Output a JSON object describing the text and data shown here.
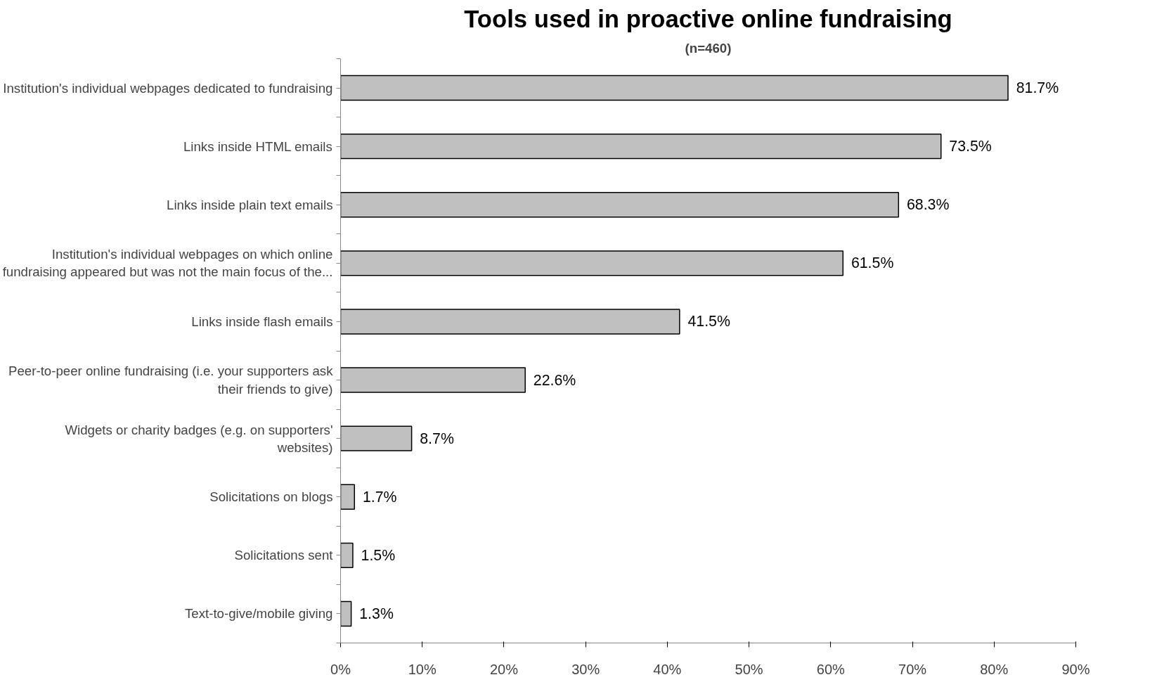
{
  "chart_data": {
    "type": "bar",
    "orientation": "horizontal",
    "title": "Tools used in proactive online fundraising",
    "subtitle": "(n=460)",
    "categories": [
      "Institution's individual webpages dedicated to fundraising",
      "Links inside HTML emails",
      "Links inside plain text emails",
      "Institution's individual webpages on which online\nfundraising appeared but was not the main focus of the...",
      "Links inside flash emails",
      "Peer-to-peer online fundraising (i.e. your supporters ask\ntheir friends to give)",
      "Widgets or charity badges (e.g. on supporters'\nwebsites)",
      "Solicitations on blogs",
      "Solicitations sent",
      "Text-to-give/mobile giving"
    ],
    "values": [
      81.7,
      73.5,
      68.3,
      61.5,
      41.5,
      22.6,
      8.7,
      1.7,
      1.5,
      1.3
    ],
    "value_labels": [
      "81.7%",
      "73.5%",
      "68.3%",
      "61.5%",
      "41.5%",
      "22.6%",
      "8.7%",
      "1.7%",
      "1.5%",
      "1.3%"
    ],
    "color": "#c0c0c0",
    "xlim": [
      0,
      90
    ],
    "xticks": [
      {
        "value": 0,
        "label": "0%"
      },
      {
        "value": 10,
        "label": "10%"
      },
      {
        "value": 20,
        "label": "20%"
      },
      {
        "value": 30,
        "label": "30%"
      },
      {
        "value": 40,
        "label": "40%"
      },
      {
        "value": 50,
        "label": "50%"
      },
      {
        "value": 60,
        "label": "60%"
      },
      {
        "value": 70,
        "label": "70%"
      },
      {
        "value": 80,
        "label": "80%"
      },
      {
        "value": 90,
        "label": "90%"
      }
    ],
    "grid": false
  }
}
